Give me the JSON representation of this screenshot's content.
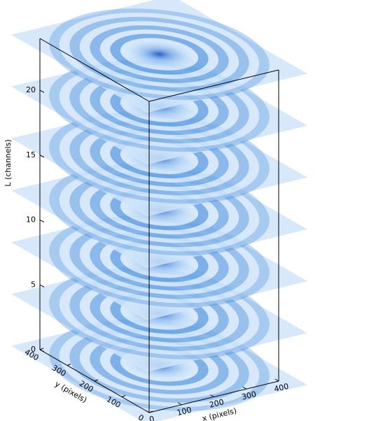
{
  "chart_data": {
    "type": "slices-3d",
    "xlabel": "x (pixels)",
    "ylabel": "y (pixels)",
    "zlabel": "L (channels)",
    "xlim": [
      0,
      400
    ],
    "ylim": [
      0,
      400
    ],
    "zlim": [
      0,
      24
    ],
    "xticks": [
      0,
      100,
      200,
      300,
      400
    ],
    "yticks": [
      0,
      100,
      200,
      300,
      400
    ],
    "zticks": [
      0,
      5,
      10,
      15,
      20
    ],
    "slices": [
      0,
      4,
      8,
      12,
      16,
      20,
      24
    ],
    "color": "#2f7fd8"
  }
}
